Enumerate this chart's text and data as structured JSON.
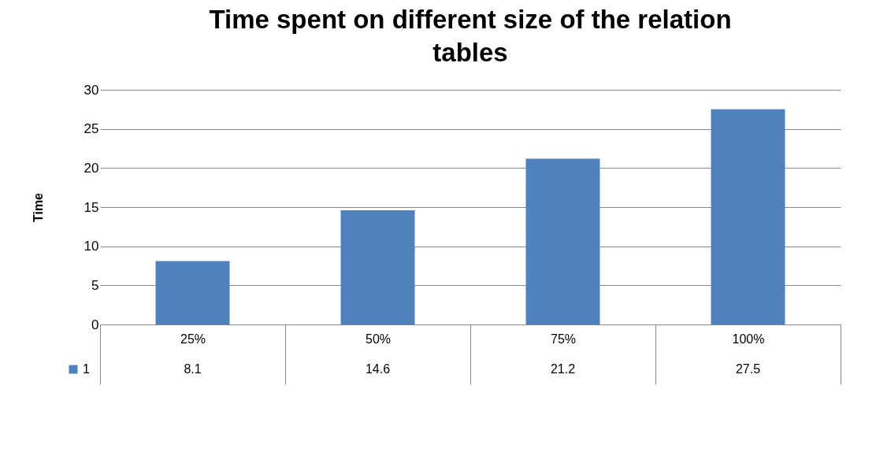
{
  "chart_data": {
    "type": "bar",
    "title": "Time spent on different size of the relation tables",
    "ylabel": "Time",
    "categories": [
      "25%",
      "50%",
      "75%",
      "100%"
    ],
    "series": [
      {
        "name": "1",
        "color": "#4f81bd",
        "values": [
          8.1,
          14.6,
          21.2,
          27.5
        ]
      }
    ],
    "ylim": [
      0,
      30
    ],
    "yticks": [
      0,
      5,
      10,
      15,
      20,
      25,
      30
    ],
    "grid": "y",
    "data_labels": true,
    "legend": "bottom left"
  }
}
